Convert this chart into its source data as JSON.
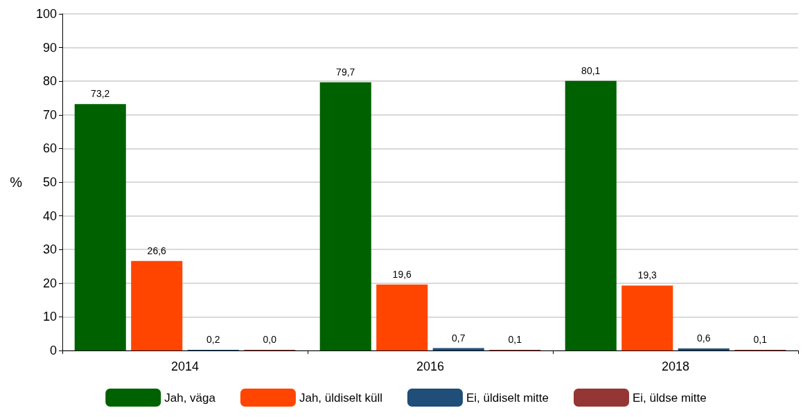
{
  "chart_data": {
    "type": "bar",
    "ylabel": "%",
    "categories": [
      "2014",
      "2016",
      "2018"
    ],
    "series": [
      {
        "name": "Jah, väga",
        "color": "#006100",
        "values": [
          73.2,
          79.7,
          80.1
        ],
        "value_labels": [
          "73,2",
          "79,7",
          "80,1"
        ]
      },
      {
        "name": "Jah, üldiselt küll",
        "color": "#ff4500",
        "values": [
          26.6,
          19.6,
          19.3
        ],
        "value_labels": [
          "26,6",
          "19,6",
          "19,3"
        ]
      },
      {
        "name": "Ei, üldiselt mitte",
        "color": "#1f4e79",
        "values": [
          0.2,
          0.7,
          0.6
        ],
        "value_labels": [
          "0,2",
          "0,7",
          "0,6"
        ]
      },
      {
        "name": "Ei, üldse mitte",
        "color": "#943634",
        "values": [
          0.0,
          0.1,
          0.1
        ],
        "value_labels": [
          "0,0",
          "0,1",
          "0,1"
        ]
      }
    ],
    "ylim": [
      0,
      100
    ],
    "yticks": [
      0,
      10,
      20,
      30,
      40,
      50,
      60,
      70,
      80,
      90,
      100
    ],
    "grid": "y",
    "legend": "bottom"
  }
}
